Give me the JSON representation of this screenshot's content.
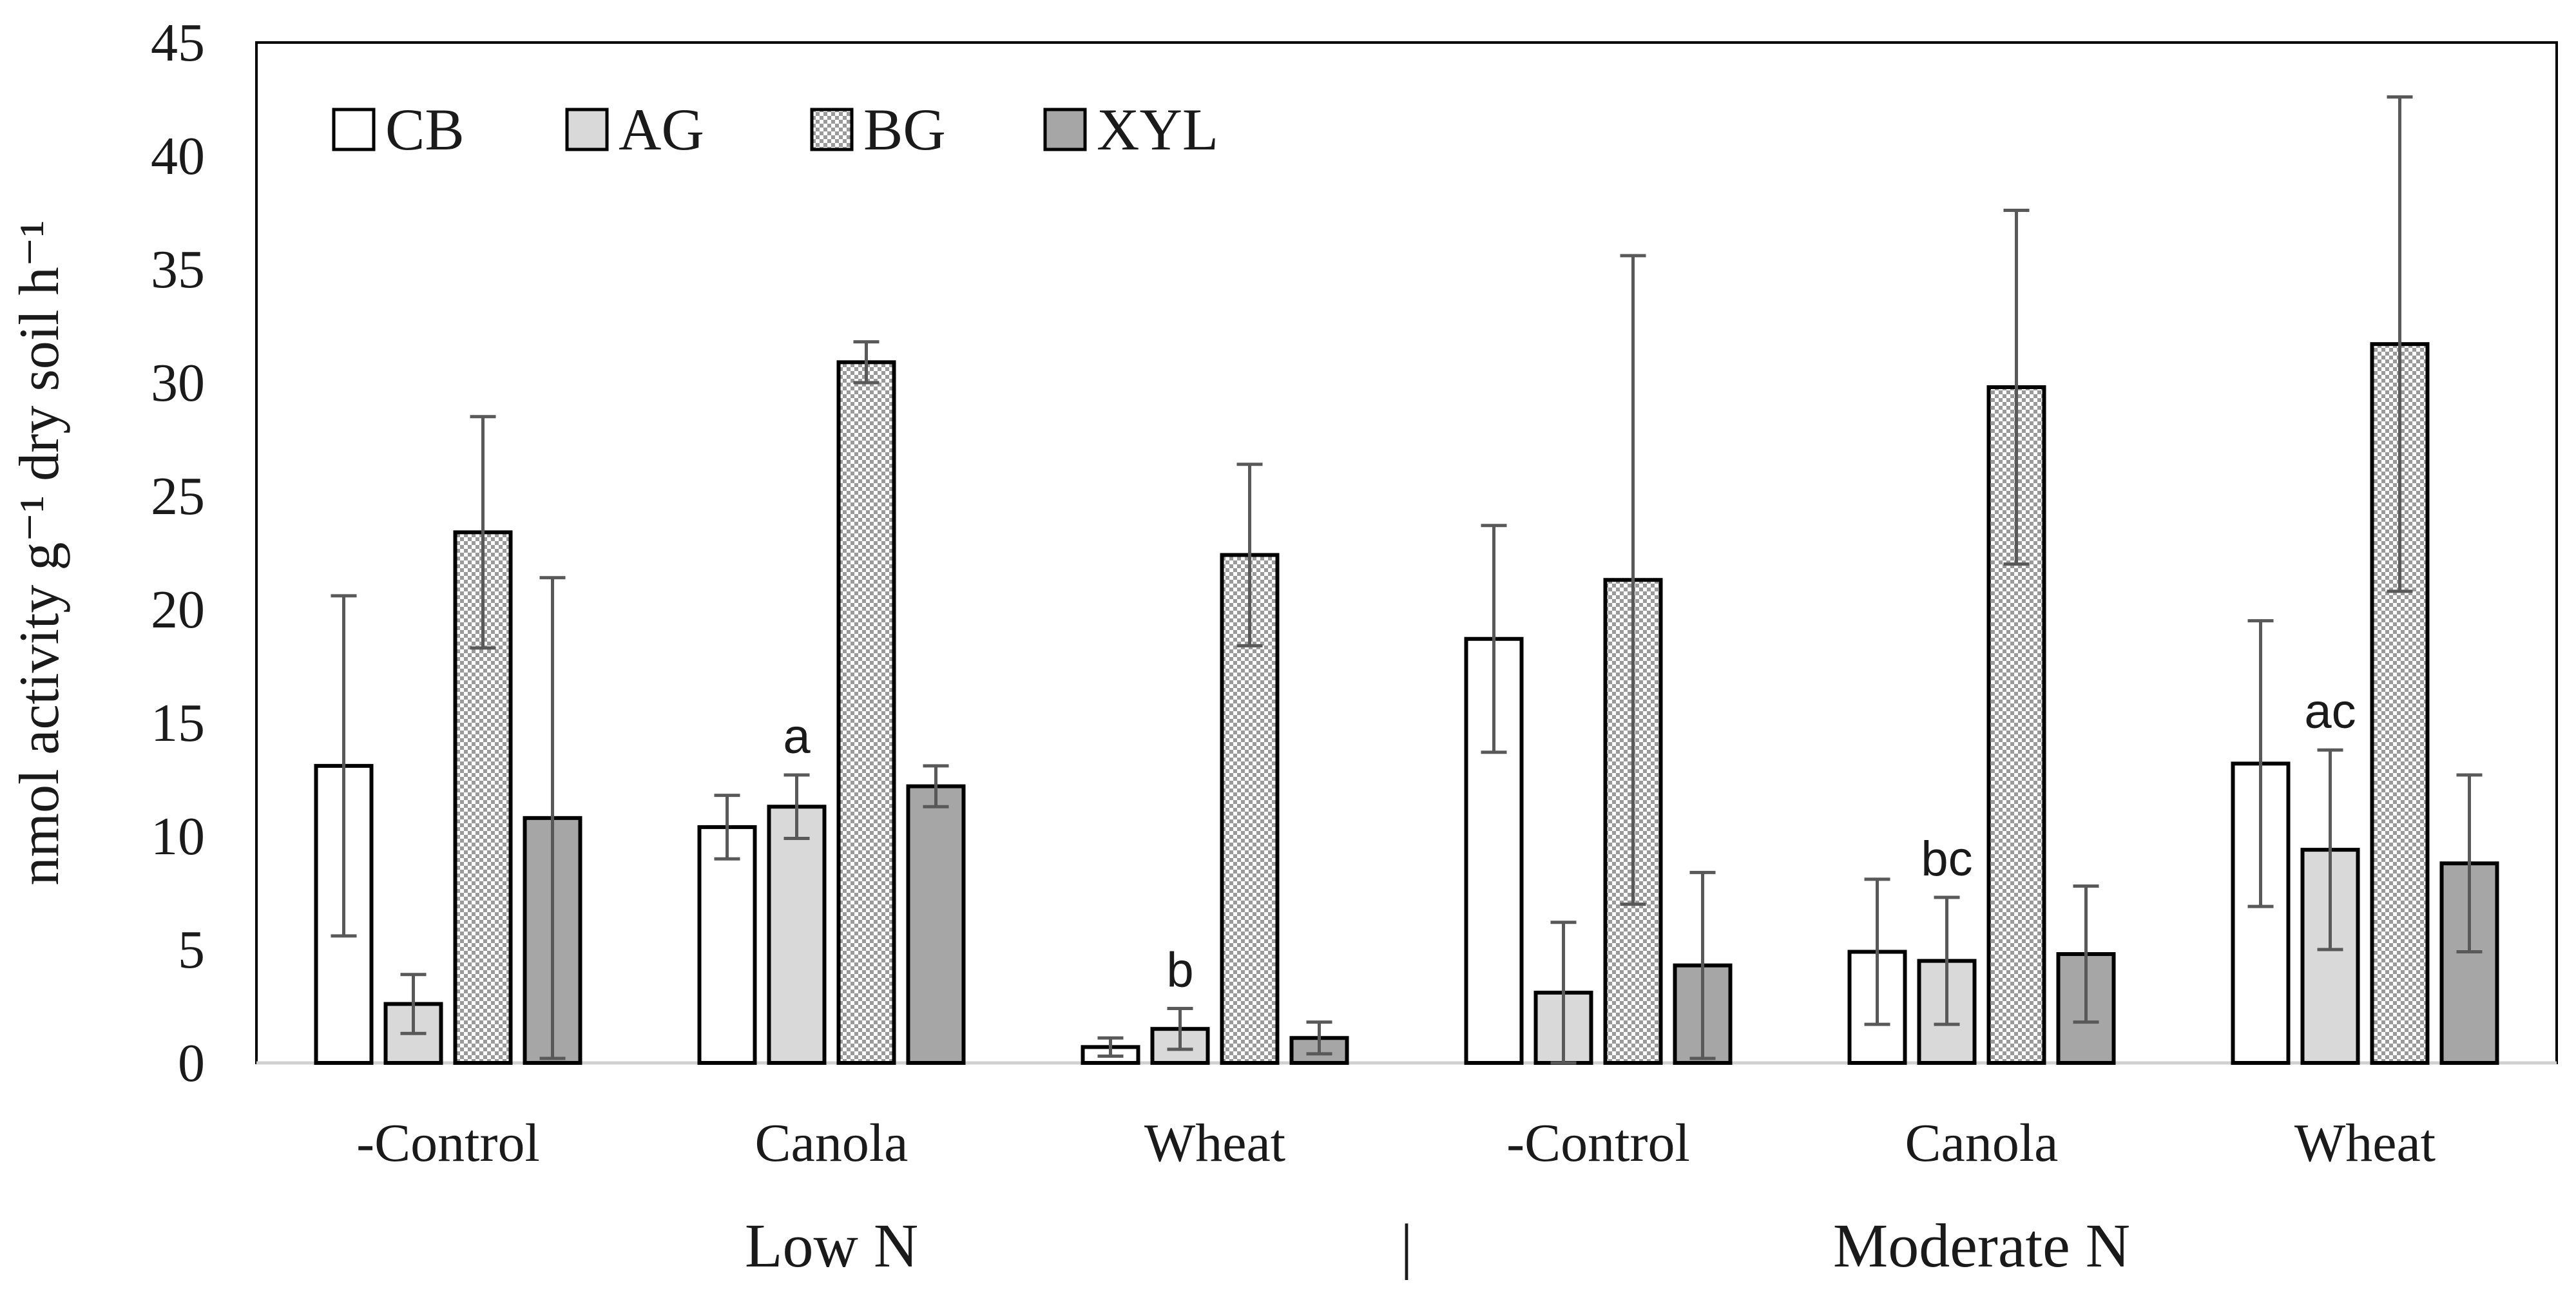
{
  "chart_data": {
    "type": "bar",
    "title": "",
    "ylabel": "nmol activity g⁻¹ dry soil h⁻¹",
    "xlabel": "",
    "ylim": [
      0,
      45
    ],
    "yticks": [
      0,
      5,
      10,
      15,
      20,
      25,
      30,
      35,
      40,
      45
    ],
    "grid": false,
    "legend_position": "top-left",
    "categories": [
      "-Control",
      "Canola",
      "Wheat",
      "-Control",
      "Canola",
      "Wheat"
    ],
    "groups": [
      {
        "label": "Low N",
        "categories": [
          0,
          1,
          2
        ]
      },
      {
        "label": "Moderate N",
        "categories": [
          3,
          4,
          5
        ]
      }
    ],
    "group_separator": "|",
    "series": [
      {
        "name": "CB",
        "pattern": "white",
        "values": [
          13.1,
          10.4,
          0.7,
          18.7,
          4.9,
          13.2
        ],
        "errors": [
          7.5,
          1.4,
          0.4,
          5.0,
          3.2,
          6.3
        ]
      },
      {
        "name": "AG",
        "pattern": "lightgray",
        "values": [
          2.6,
          11.3,
          1.5,
          3.1,
          4.5,
          9.4
        ],
        "errors": [
          1.3,
          1.4,
          0.9,
          3.1,
          2.8,
          4.4
        ]
      },
      {
        "name": "BG",
        "pattern": "checker",
        "values": [
          23.4,
          30.9,
          22.4,
          21.3,
          29.8,
          31.7
        ],
        "errors": [
          5.1,
          0.9,
          4.0,
          14.3,
          7.8,
          10.9
        ]
      },
      {
        "name": "XYL",
        "pattern": "darkgray",
        "values": [
          10.8,
          12.2,
          1.1,
          4.3,
          4.8,
          8.8
        ],
        "errors": [
          10.6,
          0.9,
          0.7,
          4.1,
          3.0,
          3.9
        ]
      }
    ],
    "annotations": [
      {
        "text": "a",
        "category": 1,
        "series": 1
      },
      {
        "text": "b",
        "category": 2,
        "series": 1
      },
      {
        "text": "bc",
        "category": 4,
        "series": 1
      },
      {
        "text": "ac",
        "category": 5,
        "series": 1
      }
    ],
    "colors": {
      "CB": "#ffffff",
      "AG": "#d9d9d9",
      "BG_light": "#ffffff",
      "BG_dark": "#9a9a9a",
      "XYL": "#a6a6a6",
      "outline": "#000000",
      "error_bar": "#595959",
      "axis": "#d0d0d0",
      "frame": "#000000",
      "text": "#1a1a1a"
    }
  }
}
